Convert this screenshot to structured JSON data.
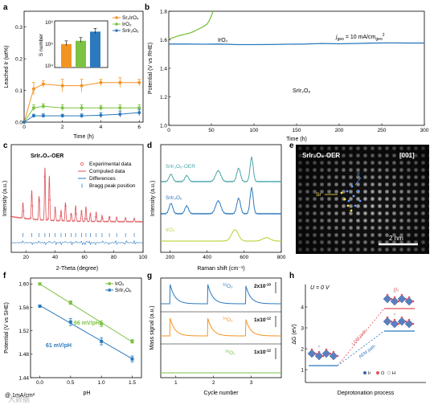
{
  "watermark": "大数据",
  "panel_labels": [
    "a",
    "b",
    "c",
    "d",
    "e",
    "f",
    "g",
    "h"
  ],
  "colors": {
    "orange": "#f29423",
    "green": "#7cc243",
    "blue": "#2c79bd",
    "red": "#e0525a",
    "lime": "#b8d236",
    "teal": "#4aa6a8",
    "gray": "#8c8c8c"
  },
  "chart_data": [
    {
      "id": "a",
      "type": "line",
      "xlabel": "Time (h)",
      "ylabel": "Leached Ir (wt%)",
      "xlim": [
        0,
        6.2
      ],
      "ylim": [
        0,
        0.35
      ],
      "xticks": [
        0,
        2,
        4,
        6
      ],
      "yticks": [
        0.0,
        0.1,
        0.2,
        0.3
      ],
      "x": [
        0,
        0.5,
        1,
        2,
        3,
        4,
        5,
        6
      ],
      "series": [
        {
          "name": "Sr₂IrO₄",
          "color": "#f29423",
          "values": [
            0.0,
            0.105,
            0.12,
            0.115,
            0.115,
            0.125,
            0.125,
            0.125
          ],
          "err": [
            0,
            0.02,
            0.01,
            0.02,
            0.02,
            0.01,
            0.015,
            0.01
          ]
        },
        {
          "name": "IrO₂",
          "color": "#7cc243",
          "values": [
            0.0,
            0.045,
            0.05,
            0.045,
            0.045,
            0.045,
            0.045,
            0.045
          ],
          "err": [
            0,
            0.01,
            0.008,
            0.01,
            0.01,
            0.008,
            0.01,
            0.01
          ]
        },
        {
          "name": "SrIr₂O₆",
          "color": "#2c79bd",
          "values": [
            0.0,
            0.02,
            0.02,
            0.02,
            0.02,
            0.022,
            0.025,
            0.03
          ],
          "err": [
            0,
            0.005,
            0.006,
            0.005,
            0.006,
            0.008,
            0.01,
            0.01
          ]
        }
      ],
      "inset": {
        "ylabel": "S number",
        "scale": "log",
        "yticks": [
          "10⁴",
          "10⁵",
          "10⁶"
        ],
        "bars": [
          {
            "color": "#f29423",
            "value": 120000.0
          },
          {
            "color": "#7cc243",
            "value": 170000.0
          },
          {
            "color": "#2c79bd",
            "value": 450000.0
          }
        ]
      }
    },
    {
      "id": "b",
      "type": "line",
      "xlabel": "Time (h)",
      "ylabel": "Potential (V vs RHE)",
      "xlim": [
        0,
        300
      ],
      "ylim": [
        1.0,
        1.8
      ],
      "xticks": [
        0,
        50,
        100,
        150,
        200,
        250,
        300
      ],
      "yticks": [
        1.0,
        1.2,
        1.4,
        1.6,
        1.8
      ],
      "annotation": "j",
      "annotation_sub": "geo",
      "annotation_rest": " = 10 mA/cm",
      "annotation_unit_sub": "geo",
      "annotation_sup": "2",
      "series": [
        {
          "name": "IrO₂",
          "color": "#7cc243",
          "x": [
            0,
            5,
            10,
            15,
            20,
            25,
            30,
            35,
            40,
            45,
            48,
            50,
            52
          ],
          "y": [
            1.605,
            1.615,
            1.625,
            1.633,
            1.64,
            1.648,
            1.66,
            1.675,
            1.69,
            1.71,
            1.74,
            1.77,
            1.8
          ]
        },
        {
          "name": "SrIr₂O₆",
          "color": "#2c79bd",
          "x": [
            0,
            20,
            40,
            60,
            80,
            100,
            120,
            140,
            160,
            180,
            200,
            220,
            240,
            260,
            280,
            300
          ],
          "y": [
            1.57,
            1.57,
            1.569,
            1.57,
            1.566,
            1.566,
            1.567,
            1.569,
            1.57,
            1.574,
            1.572,
            1.574,
            1.577,
            1.578,
            1.577,
            1.577
          ]
        }
      ]
    },
    {
      "id": "c",
      "type": "line",
      "title": "SrIr₂O₆-OER",
      "xlabel": "2-Theta (degree)",
      "ylabel": "Intensity (a.u.)",
      "xlim": [
        10,
        100
      ],
      "xticks": [
        20,
        40,
        60,
        80,
        100
      ],
      "peaks": [
        18,
        24,
        29,
        33,
        36,
        40,
        44,
        47,
        51,
        54,
        58,
        61,
        64,
        68,
        72,
        77,
        82,
        88,
        94
      ],
      "peak_heights": [
        0.3,
        0.55,
        0.45,
        1.0,
        0.85,
        0.25,
        0.2,
        0.35,
        0.15,
        0.3,
        0.2,
        0.28,
        0.15,
        0.18,
        0.12,
        0.1,
        0.08,
        0.07,
        0.06
      ],
      "legend": [
        {
          "name": "Experimental data",
          "color": "#e0525a",
          "marker": "circle"
        },
        {
          "name": "Computed data",
          "color": "#e0525a",
          "marker": "line"
        },
        {
          "name": "Differences",
          "color": "#2c79bd",
          "marker": "line"
        },
        {
          "name": "Bragg peak position",
          "color": "#2c79bd",
          "marker": "bar"
        }
      ]
    },
    {
      "id": "d",
      "type": "line",
      "xlabel": "Raman shift (cm⁻¹)",
      "ylabel": "Intensity (a.u.)",
      "xlim": [
        150,
        800
      ],
      "xticks": [
        200,
        400,
        600,
        800
      ],
      "series": [
        {
          "name": "SrIr₂O₆-OER",
          "color": "#4aa6a8",
          "peaks": [
            205,
            290,
            460,
            570,
            640
          ],
          "heights": [
            0.3,
            0.25,
            0.45,
            0.55,
            1.0
          ]
        },
        {
          "name": "SrIr₂O₆",
          "color": "#2c79bd",
          "peaks": [
            205,
            290,
            460,
            570,
            640
          ],
          "heights": [
            0.4,
            0.3,
            0.5,
            0.6,
            1.0
          ]
        },
        {
          "name": "IrO₂",
          "color": "#b8d236",
          "peaks": [
            550,
            720
          ],
          "heights": [
            1.0,
            0.3
          ]
        }
      ]
    },
    {
      "id": "f",
      "type": "scatter",
      "xlabel": "pH",
      "ylabel": "Potential (V vs SHE)",
      "xlim": [
        -0.15,
        1.65
      ],
      "ylim": [
        1.44,
        1.61
      ],
      "xticks": [
        0.0,
        0.5,
        1.0,
        1.5
      ],
      "yticks": [
        1.44,
        1.48,
        1.52,
        1.56,
        1.6
      ],
      "x": [
        0.0,
        0.5,
        1.0,
        1.5
      ],
      "series": [
        {
          "name": "IrO₂",
          "color": "#7cc243",
          "values": [
            1.6,
            1.568,
            1.532,
            1.502
          ],
          "err": [
            0,
            0.003,
            0.005,
            0.003
          ],
          "slope_label": "66 mV/pH"
        },
        {
          "name": "SrIr₂O₆",
          "color": "#2c79bd",
          "values": [
            1.562,
            1.535,
            1.502,
            1.472
          ],
          "err": [
            0,
            0.006,
            0.006,
            0.005
          ],
          "slope_label": "61 mV/pH"
        }
      ],
      "annotation": "@ 1mA/cm²"
    },
    {
      "id": "g",
      "type": "line",
      "xlabel": "Cycle number",
      "ylabel": "Mass signal (a.u.)",
      "xticks": [
        1,
        2,
        3
      ],
      "series": [
        {
          "name": "32",
          "label_rest": "O₂",
          "color": "#2c79bd",
          "scale": "2x10",
          "scale_exp": "-10"
        },
        {
          "name": "34",
          "label_rest": "O₂",
          "color": "#f29423",
          "scale": "1x10",
          "scale_exp": "-12"
        },
        {
          "name": "36",
          "label_rest": "O₂",
          "color": "#7cc243",
          "scale": "1x10",
          "scale_exp": "-12"
        }
      ]
    }
  ],
  "panel_e": {
    "title": "SrIr₂O₆-OER",
    "zone": "[001]",
    "label_ir": "Ir",
    "label_sr": "Sr",
    "scale_bar": "2 nm"
  },
  "panel_h": {
    "condition": "U = 0 V",
    "ylabel": "ΔG (eV)",
    "xlabel": "Deprotonation process",
    "yticks": [
      "1",
      "2",
      "3",
      "4"
    ],
    "path_lom": "LOM path",
    "path_aem": "AEM path",
    "legend": [
      "Ir",
      "O",
      "H"
    ],
    "o2_label": "O₂"
  }
}
